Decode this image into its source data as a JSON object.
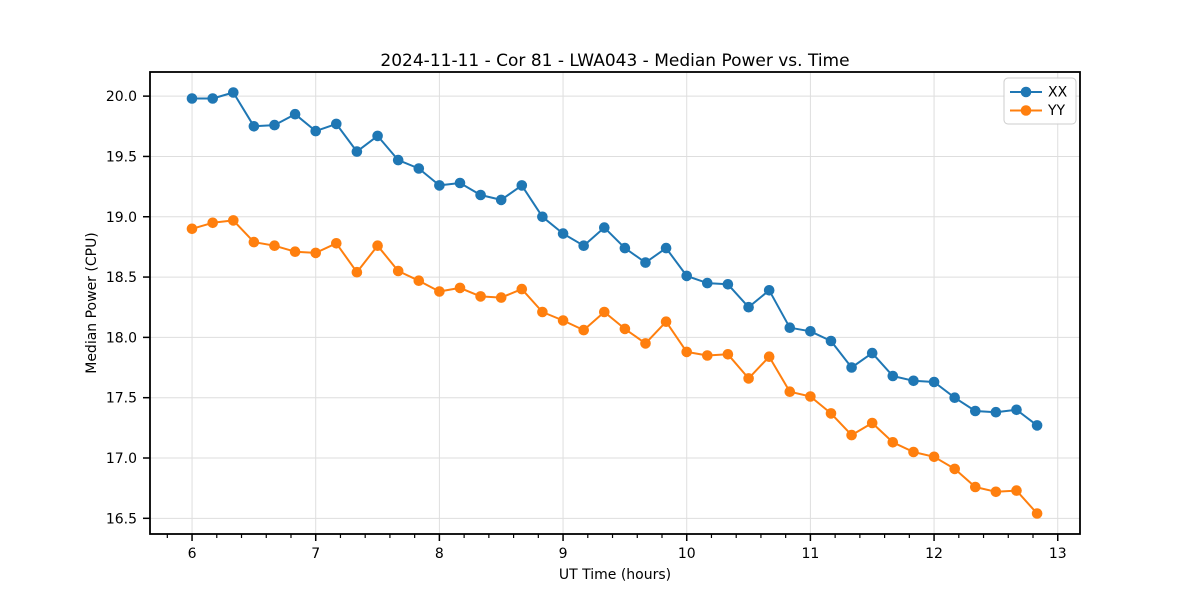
{
  "chart_data": {
    "type": "line",
    "title": "2024-11-11 - Cor 81 - LWA043 - Median Power vs. Time",
    "xlabel": "UT Time (hours)",
    "ylabel": "Median Power (CPU)",
    "xlim": [
      5.66,
      13.18
    ],
    "ylim": [
      16.37,
      20.2
    ],
    "xticks": [
      6,
      7,
      8,
      9,
      10,
      11,
      12,
      13
    ],
    "yticks": [
      16.5,
      17.0,
      17.5,
      18.0,
      18.5,
      19.0,
      19.5,
      20.0
    ],
    "x_minor_step": 0.2,
    "grid": true,
    "grid_color": "#dedede",
    "legend_position": "upper right",
    "x": [
      6.0,
      6.1667,
      6.3333,
      6.5,
      6.6667,
      6.8333,
      7.0,
      7.1667,
      7.3333,
      7.5,
      7.6667,
      7.8333,
      8.0,
      8.1667,
      8.3333,
      8.5,
      8.6667,
      8.8333,
      9.0,
      9.1667,
      9.3333,
      9.5,
      9.6667,
      9.8333,
      10.0,
      10.1667,
      10.3333,
      10.5,
      10.6667,
      10.8333,
      11.0,
      11.1667,
      11.3333,
      11.5,
      11.6667,
      11.8333,
      12.0,
      12.1667,
      12.3333,
      12.5,
      12.6667,
      12.8333
    ],
    "series": [
      {
        "name": "XX",
        "color": "#1f77b4",
        "values": [
          19.98,
          19.98,
          20.03,
          19.75,
          19.76,
          19.85,
          19.71,
          19.77,
          19.54,
          19.67,
          19.47,
          19.4,
          19.26,
          19.28,
          19.18,
          19.14,
          19.26,
          19.0,
          18.86,
          18.76,
          18.91,
          18.74,
          18.62,
          18.74,
          18.51,
          18.45,
          18.44,
          18.25,
          18.39,
          18.08,
          18.05,
          17.97,
          17.75,
          17.87,
          17.68,
          17.64,
          17.63,
          17.5,
          17.39,
          17.38,
          17.4,
          17.27
        ]
      },
      {
        "name": "YY",
        "color": "#ff7f0e",
        "values": [
          18.9,
          18.95,
          18.97,
          18.79,
          18.76,
          18.71,
          18.7,
          18.78,
          18.54,
          18.76,
          18.55,
          18.47,
          18.38,
          18.41,
          18.34,
          18.33,
          18.4,
          18.21,
          18.14,
          18.06,
          18.21,
          18.07,
          17.95,
          18.13,
          17.88,
          17.85,
          17.86,
          17.66,
          17.84,
          17.55,
          17.51,
          17.37,
          17.19,
          17.29,
          17.13,
          17.05,
          17.01,
          16.91,
          16.76,
          16.72,
          16.73,
          16.54
        ]
      }
    ]
  }
}
